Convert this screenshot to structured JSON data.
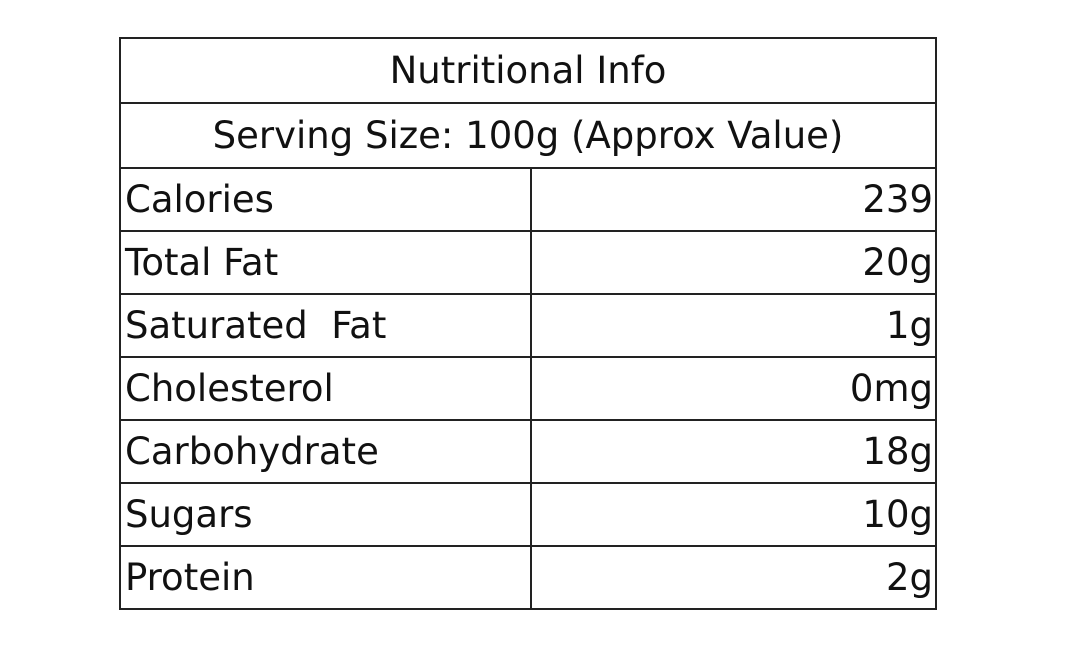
{
  "table": {
    "title": "Nutritional Info",
    "subtitle": "Serving Size: 100g (Approx Value)",
    "rows": [
      [
        "Calories",
        "239"
      ],
      [
        "Total Fat",
        "20g"
      ],
      [
        "Saturated  Fat",
        "1g"
      ],
      [
        "Cholesterol",
        "0mg"
      ],
      [
        "Carbohydrate",
        "18g"
      ],
      [
        "Sugars",
        "10g"
      ],
      [
        "Protein",
        "2g"
      ]
    ]
  }
}
